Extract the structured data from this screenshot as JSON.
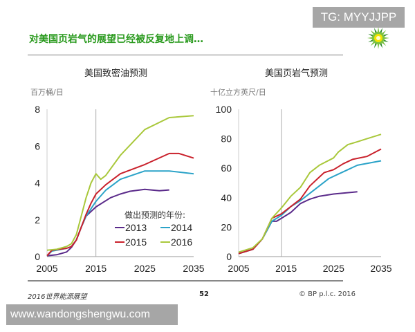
{
  "watermark_top": "TG: MYYJJPP",
  "watermark_bottom": "www.wandongshengwu.com",
  "slide_title": "对美国页岩气的展望已经被反复地上调…",
  "footer": {
    "left": "2016世界能源展望",
    "page": "52",
    "right": "© BP p.l.c. 2016"
  },
  "logo": "bp-helios-logo",
  "colors": {
    "2013": "#5a2a8a",
    "2014": "#2ba3c8",
    "2015": "#c9202b",
    "2016": "#a9c83b",
    "title": "#2a9a1e"
  },
  "legend": {
    "title": "做出预测的年份:",
    "placement": "bottom-right of left chart",
    "entries": [
      "2013",
      "2014",
      "2015",
      "2016"
    ]
  },
  "chart_data": [
    {
      "type": "line",
      "title": "美国致密油预测",
      "ylabel": "百万桶/日",
      "xlim": [
        2005,
        2035
      ],
      "ylim": [
        0,
        8
      ],
      "xticks": [
        2005,
        2015,
        2025,
        2035
      ],
      "yticks": [
        0,
        2,
        4,
        6,
        8
      ],
      "grid": false,
      "reference_line_x": 2015,
      "series": [
        {
          "name": "2013",
          "points": [
            [
              2005,
              0.05
            ],
            [
              2007,
              0.1
            ],
            [
              2009,
              0.25
            ],
            [
              2010,
              0.5
            ],
            [
              2011,
              0.9
            ],
            [
              2012,
              1.6
            ],
            [
              2013,
              2.2
            ],
            [
              2015,
              2.7
            ],
            [
              2018,
              3.2
            ],
            [
              2020,
              3.4
            ],
            [
              2022,
              3.55
            ],
            [
              2025,
              3.65
            ],
            [
              2028,
              3.58
            ],
            [
              2030,
              3.62
            ]
          ]
        },
        {
          "name": "2014",
          "points": [
            [
              2005,
              0.05
            ],
            [
              2006,
              0.3
            ],
            [
              2009,
              0.45
            ],
            [
              2010,
              0.55
            ],
            [
              2011,
              0.9
            ],
            [
              2012,
              1.6
            ],
            [
              2013,
              2.2
            ],
            [
              2015,
              3.0
            ],
            [
              2017,
              3.6
            ],
            [
              2020,
              4.2
            ],
            [
              2025,
              4.65
            ],
            [
              2030,
              4.65
            ],
            [
              2035,
              4.5
            ]
          ]
        },
        {
          "name": "2015",
          "points": [
            [
              2005,
              0.05
            ],
            [
              2006,
              0.35
            ],
            [
              2009,
              0.45
            ],
            [
              2010,
              0.55
            ],
            [
              2011,
              0.9
            ],
            [
              2012,
              1.6
            ],
            [
              2013,
              2.3
            ],
            [
              2014,
              2.9
            ],
            [
              2015,
              3.4
            ],
            [
              2017,
              3.9
            ],
            [
              2020,
              4.5
            ],
            [
              2025,
              5.0
            ],
            [
              2030,
              5.6
            ],
            [
              2032,
              5.6
            ],
            [
              2035,
              5.35
            ]
          ]
        },
        {
          "name": "2016",
          "points": [
            [
              2005,
              0.35
            ],
            [
              2007,
              0.4
            ],
            [
              2009,
              0.55
            ],
            [
              2010,
              0.7
            ],
            [
              2011,
              1.2
            ],
            [
              2012,
              2.2
            ],
            [
              2013,
              3.2
            ],
            [
              2014,
              4.0
            ],
            [
              2015,
              4.5
            ],
            [
              2016,
              4.2
            ],
            [
              2017,
              4.4
            ],
            [
              2020,
              5.5
            ],
            [
              2025,
              6.9
            ],
            [
              2030,
              7.55
            ],
            [
              2035,
              7.65
            ]
          ]
        }
      ]
    },
    {
      "type": "line",
      "title": "美国页岩气预测",
      "ylabel": "十亿立方英尺/日",
      "xlim": [
        2005,
        2035
      ],
      "ylim": [
        0,
        100
      ],
      "xticks": [
        2005,
        2015,
        2025,
        2035
      ],
      "yticks": [
        0,
        20,
        40,
        60,
        80,
        100
      ],
      "grid": false,
      "reference_line_x": 2014,
      "series": [
        {
          "name": "2013",
          "points": [
            [
              2005,
              2
            ],
            [
              2008,
              5
            ],
            [
              2010,
              12
            ],
            [
              2012,
              24
            ],
            [
              2013,
              24
            ],
            [
              2014,
              26
            ],
            [
              2016,
              30
            ],
            [
              2018,
              36
            ],
            [
              2020,
              39
            ],
            [
              2022,
              41
            ],
            [
              2025,
              42.5
            ],
            [
              2030,
              44
            ]
          ]
        },
        {
          "name": "2014",
          "points": [
            [
              2005,
              2
            ],
            [
              2008,
              5
            ],
            [
              2010,
              12
            ],
            [
              2012,
              24
            ],
            [
              2014,
              28
            ],
            [
              2016,
              34
            ],
            [
              2018,
              38
            ],
            [
              2020,
              43
            ],
            [
              2022,
              48
            ],
            [
              2024,
              53
            ],
            [
              2026,
              56
            ],
            [
              2028,
              59
            ],
            [
              2030,
              62
            ],
            [
              2035,
              65
            ]
          ]
        },
        {
          "name": "2015",
          "points": [
            [
              2005,
              2
            ],
            [
              2008,
              5
            ],
            [
              2010,
              12
            ],
            [
              2012,
              26
            ],
            [
              2014,
              29
            ],
            [
              2016,
              34
            ],
            [
              2018,
              39
            ],
            [
              2020,
              48
            ],
            [
              2022,
              54
            ],
            [
              2023,
              57
            ],
            [
              2025,
              59
            ],
            [
              2027,
              63
            ],
            [
              2029,
              66
            ],
            [
              2032,
              68
            ],
            [
              2035,
              73
            ]
          ]
        },
        {
          "name": "2016",
          "points": [
            [
              2005,
              3
            ],
            [
              2008,
              6
            ],
            [
              2010,
              12
            ],
            [
              2012,
              26
            ],
            [
              2014,
              33
            ],
            [
              2016,
              41
            ],
            [
              2018,
              47
            ],
            [
              2020,
              57
            ],
            [
              2022,
              62
            ],
            [
              2025,
              67
            ],
            [
              2026,
              71
            ],
            [
              2028,
              76
            ],
            [
              2030,
              78
            ],
            [
              2032,
              80
            ],
            [
              2035,
              83
            ]
          ]
        }
      ]
    }
  ]
}
